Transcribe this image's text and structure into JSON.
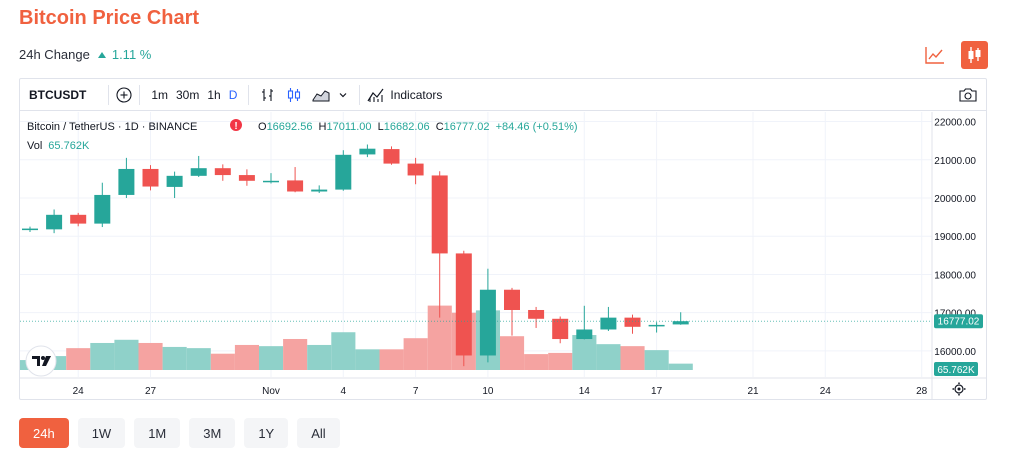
{
  "page_title": "Bitcoin Price Chart",
  "change": {
    "label": "24h Change",
    "value": "1.11 %"
  },
  "toolbar": {
    "symbol": "BTCUSDT",
    "intervals": [
      "1m",
      "30m",
      "1h",
      "D"
    ],
    "active_interval": "D",
    "indicators_label": "Indicators"
  },
  "legend": {
    "pair": "Bitcoin / TetherUS · 1D · BINANCE",
    "o_label": "O",
    "o": "16692.56",
    "h_label": "H",
    "h": "17011.00",
    "l_label": "L",
    "l": "16682.06",
    "c_label": "C",
    "c": "16777.02",
    "change": "+84.46 (+0.51%)",
    "vol_label": "Vol",
    "vol": "65.762K"
  },
  "price_tag": "16777.02",
  "volume_tag": "65.762K",
  "timeframes": [
    "24h",
    "1W",
    "1M",
    "3M",
    "1Y",
    "All"
  ],
  "active_timeframe": "24h",
  "colors": {
    "accent": "#f0613f",
    "up": "#26a69a",
    "down": "#ef5350",
    "up_volume": "#8fd1c9",
    "down_volume": "#f5a3a1"
  },
  "chart_data": {
    "type": "candlestick",
    "y_ticks": [
      "22000.00",
      "21000.00",
      "20000.00",
      "19000.00",
      "18000.00",
      "17000.00",
      "16000.00"
    ],
    "ylim": [
      15500,
      22250
    ],
    "x_ticks": [
      {
        "label": "24",
        "index": 2
      },
      {
        "label": "27",
        "index": 5
      },
      {
        "label": "Nov",
        "index": 10
      },
      {
        "label": "4",
        "index": 13
      },
      {
        "label": "7",
        "index": 16
      },
      {
        "label": "10",
        "index": 19
      },
      {
        "label": "14",
        "index": 23
      },
      {
        "label": "17",
        "index": 26
      },
      {
        "label": "21",
        "index": 30
      },
      {
        "label": "24",
        "index": 33
      },
      {
        "label": "28",
        "index": 37
      }
    ],
    "candles": [
      {
        "o": 19160,
        "h": 19250,
        "l": 19110,
        "c": 19200,
        "v": 0.25
      },
      {
        "o": 19180,
        "h": 19700,
        "l": 19080,
        "c": 19560,
        "v": 0.35
      },
      {
        "o": 19560,
        "h": 19610,
        "l": 19260,
        "c": 19330,
        "v": 0.55
      },
      {
        "o": 19330,
        "h": 20400,
        "l": 19240,
        "c": 20080,
        "v": 0.68
      },
      {
        "o": 20080,
        "h": 21050,
        "l": 20000,
        "c": 20760,
        "v": 0.76
      },
      {
        "o": 20760,
        "h": 20860,
        "l": 20200,
        "c": 20300,
        "v": 0.68
      },
      {
        "o": 20290,
        "h": 20690,
        "l": 20000,
        "c": 20580,
        "v": 0.58
      },
      {
        "o": 20580,
        "h": 21100,
        "l": 20550,
        "c": 20780,
        "v": 0.55
      },
      {
        "o": 20780,
        "h": 20880,
        "l": 20450,
        "c": 20600,
        "v": 0.41
      },
      {
        "o": 20600,
        "h": 20750,
        "l": 20320,
        "c": 20450,
        "v": 0.63
      },
      {
        "o": 20450,
        "h": 20650,
        "l": 20380,
        "c": 20450,
        "v": 0.6
      },
      {
        "o": 20460,
        "h": 20810,
        "l": 20150,
        "c": 20170,
        "v": 0.78
      },
      {
        "o": 20170,
        "h": 20330,
        "l": 20130,
        "c": 20220,
        "v": 0.63
      },
      {
        "o": 20220,
        "h": 21250,
        "l": 20190,
        "c": 21130,
        "v": 0.95
      },
      {
        "o": 21140,
        "h": 21400,
        "l": 21070,
        "c": 21290,
        "v": 0.52
      },
      {
        "o": 21280,
        "h": 21350,
        "l": 20870,
        "c": 20900,
        "v": 0.52
      },
      {
        "o": 20900,
        "h": 21050,
        "l": 20360,
        "c": 20590,
        "v": 0.8
      },
      {
        "o": 20590,
        "h": 20700,
        "l": 16870,
        "c": 18550,
        "v": 1.62
      },
      {
        "o": 18550,
        "h": 18620,
        "l": 15600,
        "c": 15880,
        "v": 1.44
      },
      {
        "o": 15880,
        "h": 18150,
        "l": 15700,
        "c": 17600,
        "v": 1.5
      },
      {
        "o": 17600,
        "h": 17650,
        "l": 16400,
        "c": 17070,
        "v": 0.85
      },
      {
        "o": 17070,
        "h": 17150,
        "l": 16600,
        "c": 16840,
        "v": 0.4
      },
      {
        "o": 16840,
        "h": 16900,
        "l": 16200,
        "c": 16310,
        "v": 0.43
      },
      {
        "o": 16310,
        "h": 17180,
        "l": 16300,
        "c": 16560,
        "v": 0.88
      },
      {
        "o": 16560,
        "h": 17150,
        "l": 16520,
        "c": 16870,
        "v": 0.65
      },
      {
        "o": 16870,
        "h": 16950,
        "l": 16450,
        "c": 16630,
        "v": 0.6
      },
      {
        "o": 16650,
        "h": 16750,
        "l": 16480,
        "c": 16680,
        "v": 0.5
      },
      {
        "o": 16692.56,
        "h": 17011,
        "l": 16682.06,
        "c": 16777.02,
        "v": 0.16
      }
    ]
  }
}
